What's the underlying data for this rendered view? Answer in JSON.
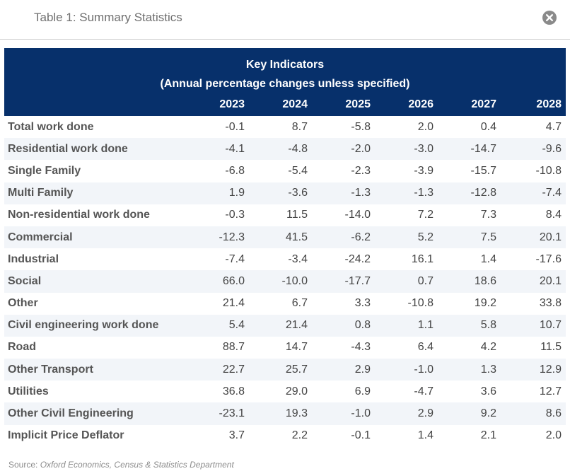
{
  "dialog": {
    "title": "Table 1: Summary Statistics"
  },
  "table": {
    "title": "Key Indicators",
    "subtitle": "(Annual percentage changes unless specified)",
    "years": [
      "2023",
      "2024",
      "2025",
      "2026",
      "2027",
      "2028"
    ],
    "rows": [
      {
        "label": "Total work done",
        "values": [
          "-0.1",
          "8.7",
          "-5.8",
          "2.0",
          "0.4",
          "4.7"
        ]
      },
      {
        "label": "Residential work done",
        "values": [
          "-4.1",
          "-4.8",
          "-2.0",
          "-3.0",
          "-14.7",
          "-9.6"
        ]
      },
      {
        "label": "Single Family",
        "values": [
          "-6.8",
          "-5.4",
          "-2.3",
          "-3.9",
          "-15.7",
          "-10.8"
        ]
      },
      {
        "label": "Multi Family",
        "values": [
          "1.9",
          "-3.6",
          "-1.3",
          "-1.3",
          "-12.8",
          "-7.4"
        ]
      },
      {
        "label": "Non-residential work done",
        "values": [
          "-0.3",
          "11.5",
          "-14.0",
          "7.2",
          "7.3",
          "8.4"
        ]
      },
      {
        "label": "Commercial",
        "values": [
          "-12.3",
          "41.5",
          "-6.2",
          "5.2",
          "7.5",
          "20.1"
        ]
      },
      {
        "label": "Industrial",
        "values": [
          "-7.4",
          "-3.4",
          "-24.2",
          "16.1",
          "1.4",
          "-17.6"
        ]
      },
      {
        "label": "Social",
        "values": [
          "66.0",
          "-10.0",
          "-17.7",
          "0.7",
          "18.6",
          "20.1"
        ]
      },
      {
        "label": "Other",
        "values": [
          "21.4",
          "6.7",
          "3.3",
          "-10.8",
          "19.2",
          "33.8"
        ]
      },
      {
        "label": "Civil engineering work done",
        "values": [
          "5.4",
          "21.4",
          "0.8",
          "1.1",
          "5.8",
          "10.7"
        ]
      },
      {
        "label": "Road",
        "values": [
          "88.7",
          "14.7",
          "-4.3",
          "6.4",
          "4.2",
          "11.5"
        ]
      },
      {
        "label": "Other Transport",
        "values": [
          "22.7",
          "25.7",
          "2.9",
          "-1.0",
          "1.3",
          "12.9"
        ]
      },
      {
        "label": "Utilities",
        "values": [
          "36.8",
          "29.0",
          "6.9",
          "-4.7",
          "3.6",
          "12.7"
        ]
      },
      {
        "label": "Other Civil Engineering",
        "values": [
          "-23.1",
          "19.3",
          "-1.0",
          "2.9",
          "9.2",
          "8.6"
        ]
      },
      {
        "label": "Implicit Price Deflator",
        "values": [
          "3.7",
          "2.2",
          "-0.1",
          "1.4",
          "2.1",
          "2.0"
        ]
      }
    ]
  },
  "source": {
    "prefix": "Source:",
    "text": "Oxford Economics, Census & Statistics Department"
  },
  "icons": {
    "close": "close-icon"
  },
  "colors": {
    "header_bg": "#07306b",
    "stripe_bg": "#f2f5f9"
  }
}
